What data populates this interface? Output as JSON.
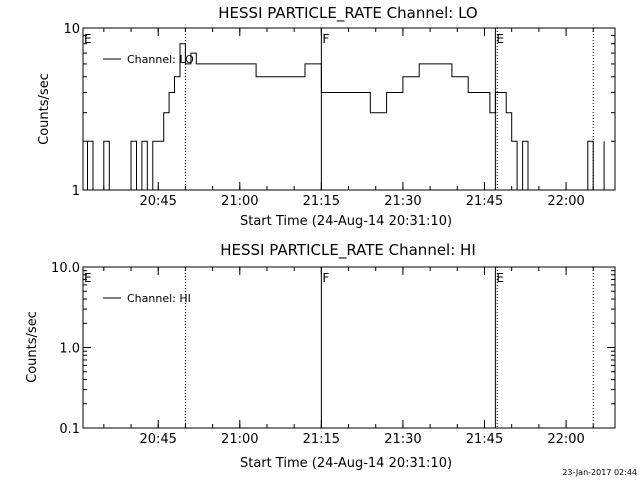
{
  "footer": {
    "timestamp": "23-Jan-2017 02:44"
  },
  "chart_data": [
    {
      "type": "line",
      "title": "HESSI PARTICLE_RATE Channel: LO",
      "xlabel": "Start Time (24-Aug-14 20:31:10)",
      "ylabel": "Counts/sec",
      "xlim": [
        "20:31:10",
        "22:09:00"
      ],
      "x_ticks": [
        "20:45",
        "21:00",
        "21:15",
        "21:30",
        "21:45",
        "22:00"
      ],
      "yscale": "log",
      "ylim": [
        1,
        10
      ],
      "y_ticks": [
        "1",
        "10"
      ],
      "legend": {
        "placement": "top-left",
        "entries": [
          "Channel: LO"
        ]
      },
      "annotations": [
        {
          "text": "E",
          "x": "20:31:10"
        },
        {
          "text": "F",
          "x": "21:15:00"
        },
        {
          "text": "E",
          "x": "21:47:00"
        }
      ],
      "vlines": [
        {
          "x": "20:50:00",
          "style": "dotted"
        },
        {
          "x": "21:15:00",
          "style": "solid"
        },
        {
          "x": "21:47:00",
          "style": "solid"
        },
        {
          "x": "21:47:20",
          "style": "dotted"
        },
        {
          "x": "22:05:00",
          "style": "dotted"
        }
      ],
      "series": [
        {
          "name": "Channel: LO",
          "x": [
            "20:31:10",
            "20:32",
            "20:33",
            "20:34",
            "20:35",
            "20:36",
            "20:38",
            "20:40",
            "20:41",
            "20:42",
            "20:43",
            "20:44",
            "20:45",
            "20:46",
            "20:47",
            "20:48",
            "20:49",
            "20:50",
            "20:51",
            "20:52",
            "20:54",
            "20:56",
            "20:58",
            "21:00",
            "21:03",
            "21:06",
            "21:09",
            "21:12",
            "21:15",
            "21:18",
            "21:21",
            "21:24",
            "21:27",
            "21:30",
            "21:33",
            "21:36",
            "21:39",
            "21:42",
            "21:45",
            "21:46",
            "21:47",
            "21:48",
            "21:49",
            "21:50",
            "21:51",
            "21:52",
            "21:53",
            "21:54",
            "21:56",
            "21:58",
            "22:00",
            "22:02",
            "22:04",
            "22:05",
            "22:07"
          ],
          "y": [
            1,
            2,
            1,
            1,
            2,
            1,
            1,
            2,
            1,
            2,
            1,
            2,
            2,
            3,
            4,
            5,
            8,
            6,
            7,
            6,
            6,
            6,
            6,
            6,
            5,
            5,
            5,
            6,
            4,
            4,
            4,
            3,
            4,
            5,
            6,
            6,
            5,
            4,
            4,
            3,
            4,
            4,
            3,
            2,
            1,
            2,
            1,
            1,
            1,
            1,
            1,
            1,
            2,
            1,
            2
          ]
        }
      ]
    },
    {
      "type": "line",
      "title": "HESSI PARTICLE_RATE Channel: HI",
      "xlabel": "Start Time (24-Aug-14 20:31:10)",
      "ylabel": "Counts/sec",
      "xlim": [
        "20:31:10",
        "22:09:00"
      ],
      "x_ticks": [
        "20:45",
        "21:00",
        "21:15",
        "21:30",
        "21:45",
        "22:00"
      ],
      "yscale": "log",
      "ylim": [
        0.1,
        10
      ],
      "y_ticks": [
        "0.1",
        "1.0",
        "10.0"
      ],
      "legend": {
        "placement": "top-left",
        "entries": [
          "Channel: HI"
        ]
      },
      "annotations": [
        {
          "text": "E",
          "x": "20:31:10"
        },
        {
          "text": "F",
          "x": "21:15:00"
        },
        {
          "text": "E",
          "x": "21:47:00"
        }
      ],
      "vlines": [
        {
          "x": "20:50:00",
          "style": "dotted"
        },
        {
          "x": "21:15:00",
          "style": "solid"
        },
        {
          "x": "21:47:00",
          "style": "solid"
        },
        {
          "x": "21:47:20",
          "style": "dotted"
        },
        {
          "x": "22:05:00",
          "style": "dotted"
        }
      ],
      "series": [
        {
          "name": "Channel: HI",
          "x": [],
          "y": []
        }
      ]
    }
  ]
}
